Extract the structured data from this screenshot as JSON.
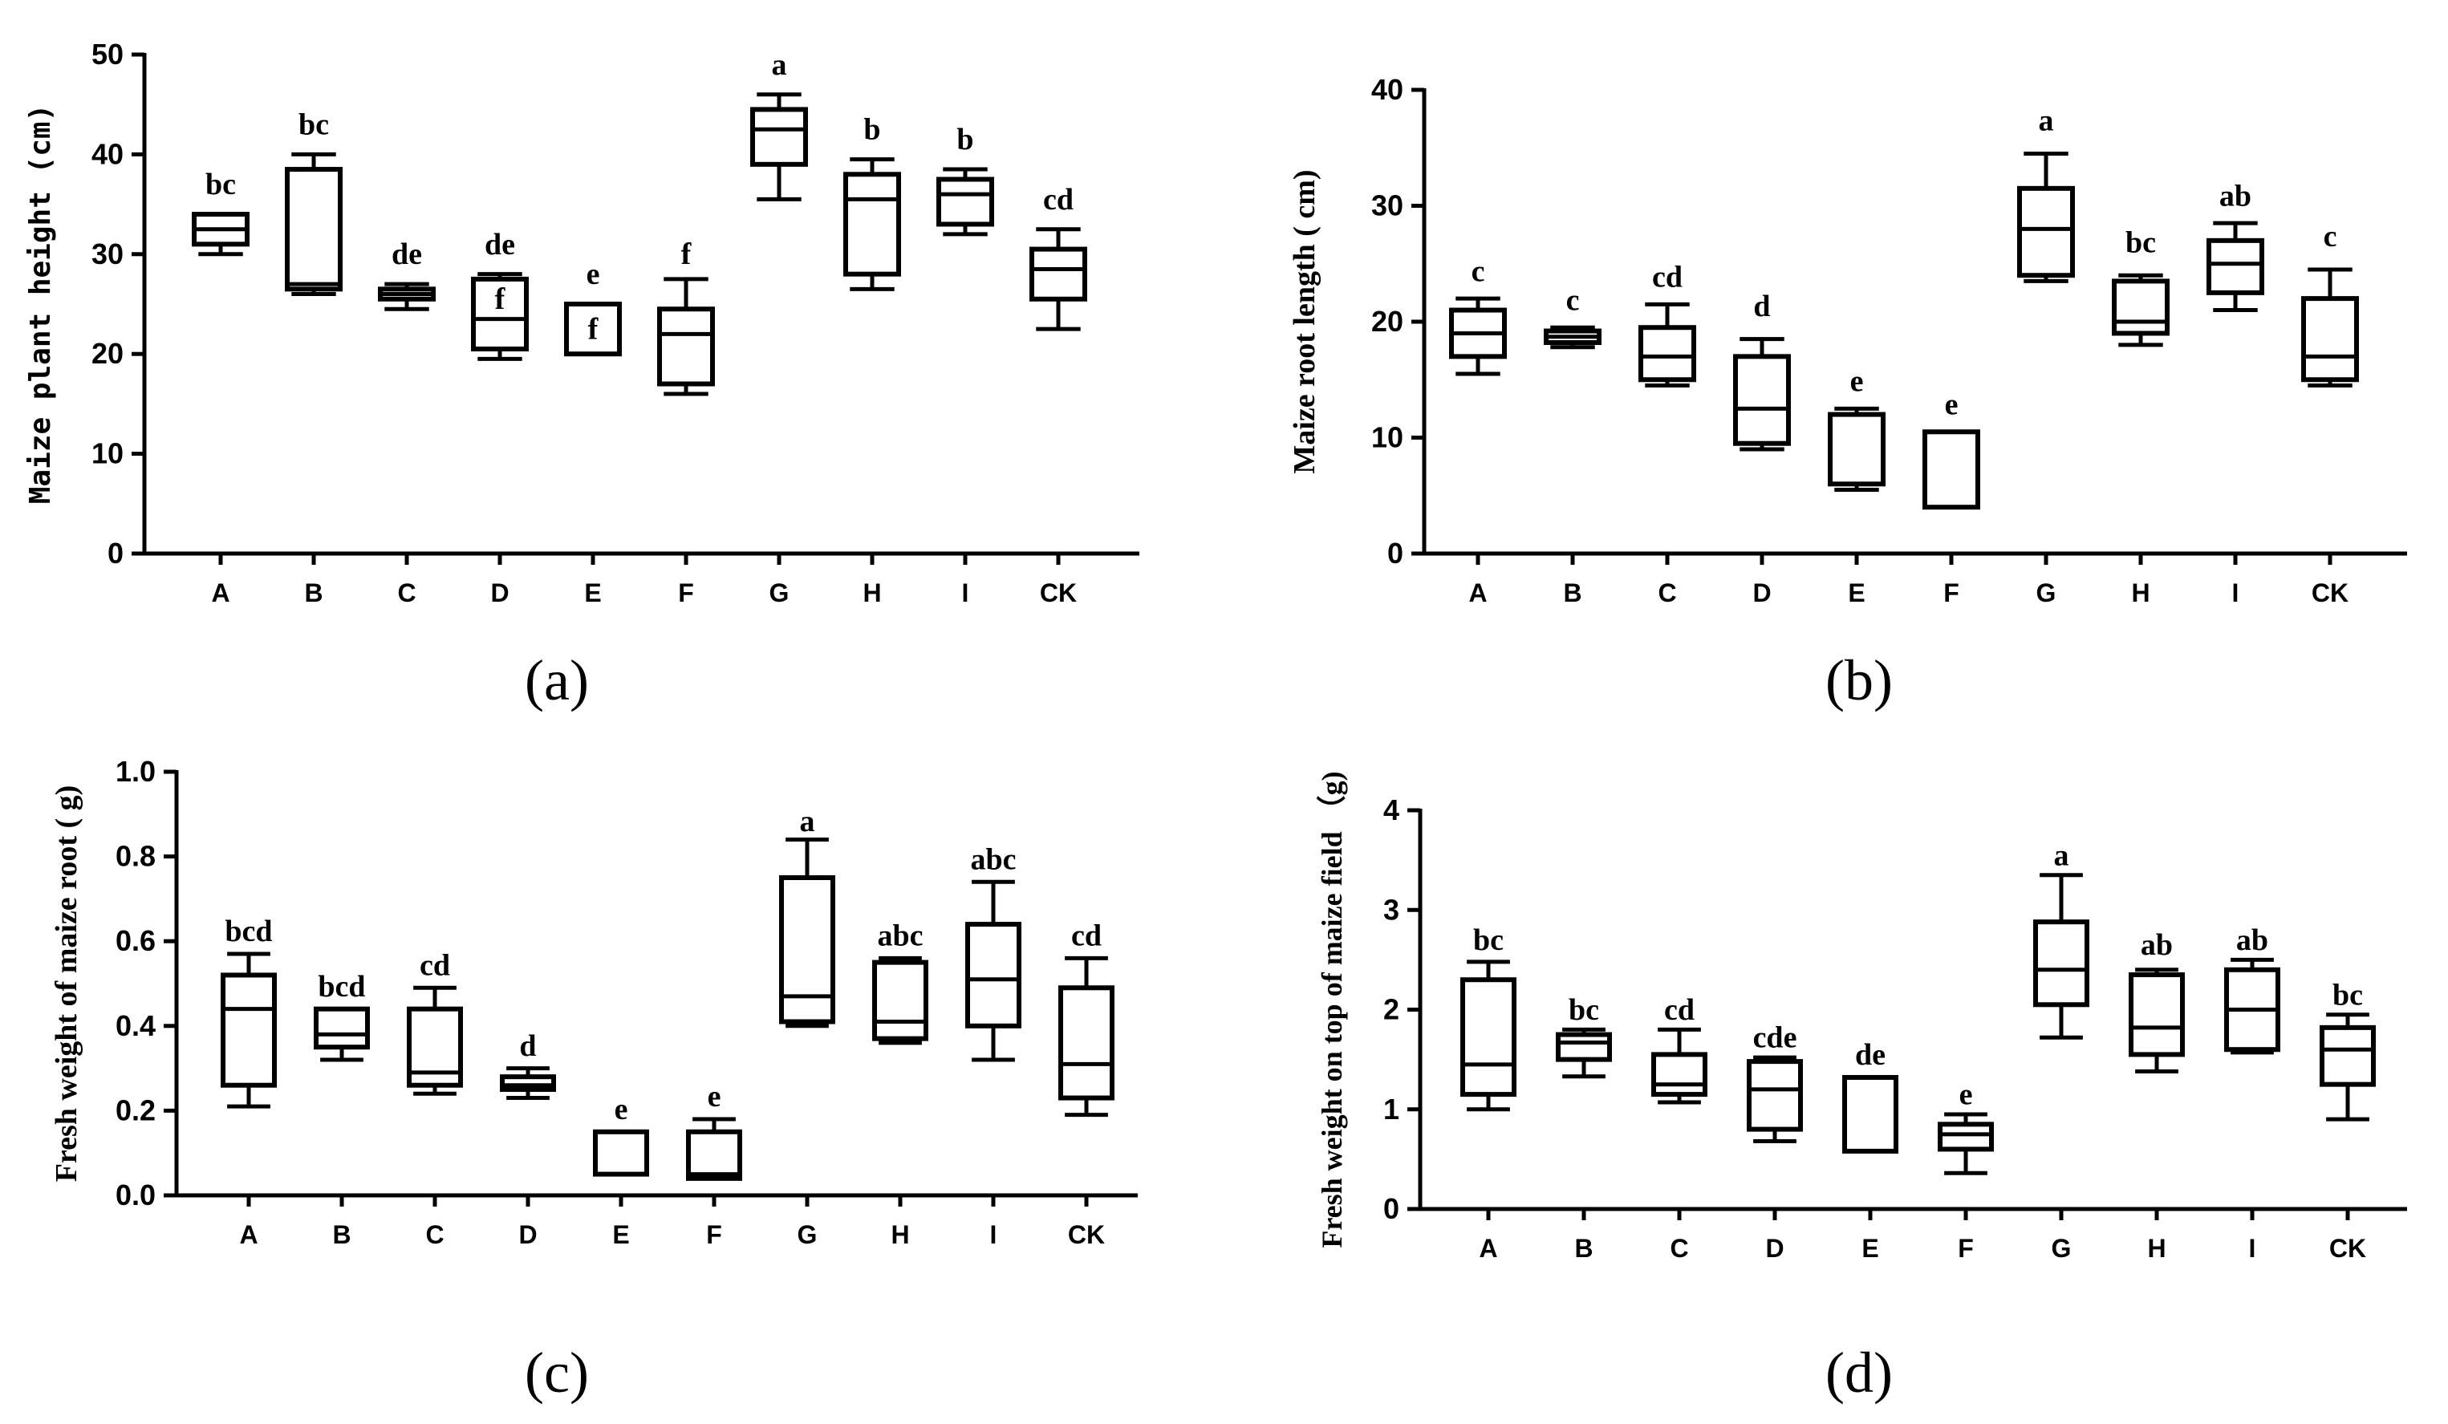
{
  "figure": {
    "panels": [
      "(a)",
      "(b)",
      "(c)",
      "(d)"
    ]
  },
  "chart_data": [
    {
      "id": "a",
      "type": "box",
      "panel_label": "(a)",
      "title": "",
      "xlabel": "",
      "ylabel": "Maize plant height (cm)",
      "ylim": [
        0,
        50
      ],
      "yticks": [
        0,
        10,
        20,
        30,
        40,
        50
      ],
      "categories": [
        "A",
        "B",
        "C",
        "D",
        "E",
        "F",
        "G",
        "H",
        "I",
        "CK"
      ],
      "boxes": [
        {
          "cat": "A",
          "min": 30.0,
          "q1": 31.0,
          "median": 32.5,
          "q3": 34.0,
          "max": 34.0
        },
        {
          "cat": "B",
          "min": 26.0,
          "q1": 26.5,
          "median": 27.0,
          "q3": 38.5,
          "max": 40.0
        },
        {
          "cat": "C",
          "min": 24.5,
          "q1": 25.5,
          "median": 26.0,
          "q3": 26.5,
          "max": 27.0
        },
        {
          "cat": "D",
          "min": 19.5,
          "q1": 20.5,
          "median": 23.5,
          "q3": 27.5,
          "max": 28.0
        },
        {
          "cat": "E",
          "min": 20.0,
          "q1": 20.0,
          "median": 20.0,
          "q3": 25.0,
          "max": 25.0
        },
        {
          "cat": "F",
          "min": 16.0,
          "q1": 17.0,
          "median": 22.0,
          "q3": 24.5,
          "max": 27.5
        },
        {
          "cat": "G",
          "min": 35.5,
          "q1": 39.0,
          "median": 42.5,
          "q3": 44.5,
          "max": 46.0
        },
        {
          "cat": "H",
          "min": 26.5,
          "q1": 28.0,
          "median": 35.5,
          "q3": 38.0,
          "max": 39.5
        },
        {
          "cat": "I",
          "min": 32.0,
          "q1": 33.0,
          "median": 36.0,
          "q3": 37.5,
          "max": 38.5
        },
        {
          "cat": "CK",
          "min": 22.5,
          "q1": 25.5,
          "median": 28.5,
          "q3": 30.5,
          "max": 32.5
        }
      ],
      "annotations": [
        {
          "cat": "A",
          "text": "bc",
          "y": 36.0
        },
        {
          "cat": "B",
          "text": "bc",
          "y": 42.0
        },
        {
          "cat": "C",
          "text": "de",
          "y": 29.0
        },
        {
          "cat": "D",
          "text": "de",
          "y": 30.0
        },
        {
          "cat": "D",
          "text": "f",
          "y": 24.5
        },
        {
          "cat": "E",
          "text": "e",
          "y": 27.0
        },
        {
          "cat": "E",
          "text": "f",
          "y": 21.5
        },
        {
          "cat": "F",
          "text": "f",
          "y": 29.0
        },
        {
          "cat": "G",
          "text": "a",
          "y": 48.0
        },
        {
          "cat": "H",
          "text": "b",
          "y": 41.5
        },
        {
          "cat": "I",
          "text": "b",
          "y": 40.5
        },
        {
          "cat": "CK",
          "text": "cd",
          "y": 34.5
        }
      ]
    },
    {
      "id": "b",
      "type": "box",
      "panel_label": "(b)",
      "title": "",
      "xlabel": "",
      "ylabel": "Maize root length ( cm)",
      "ylim": [
        0,
        40
      ],
      "yticks": [
        0,
        10,
        20,
        30,
        40
      ],
      "categories": [
        "A",
        "B",
        "C",
        "D",
        "E",
        "F",
        "G",
        "H",
        "I",
        "CK"
      ],
      "boxes": [
        {
          "cat": "A",
          "min": 15.5,
          "q1": 17.0,
          "median": 19.0,
          "q3": 21.0,
          "max": 22.0
        },
        {
          "cat": "B",
          "min": 17.8,
          "q1": 18.2,
          "median": 18.7,
          "q3": 19.2,
          "max": 19.5
        },
        {
          "cat": "C",
          "min": 14.5,
          "q1": 15.0,
          "median": 17.0,
          "q3": 19.5,
          "max": 21.5
        },
        {
          "cat": "D",
          "min": 9.0,
          "q1": 9.5,
          "median": 12.5,
          "q3": 17.0,
          "max": 18.5
        },
        {
          "cat": "E",
          "min": 5.5,
          "q1": 6.0,
          "median": 6.0,
          "q3": 12.0,
          "max": 12.5
        },
        {
          "cat": "F",
          "min": 4.0,
          "q1": 4.0,
          "median": 4.0,
          "q3": 10.5,
          "max": 10.5
        },
        {
          "cat": "G",
          "min": 23.5,
          "q1": 24.0,
          "median": 28.0,
          "q3": 31.5,
          "max": 34.5
        },
        {
          "cat": "H",
          "min": 18.0,
          "q1": 19.0,
          "median": 20.0,
          "q3": 23.5,
          "max": 24.0
        },
        {
          "cat": "I",
          "min": 21.0,
          "q1": 22.5,
          "median": 25.0,
          "q3": 27.0,
          "max": 28.5
        },
        {
          "cat": "CK",
          "min": 14.5,
          "q1": 15.0,
          "median": 17.0,
          "q3": 22.0,
          "max": 24.5
        }
      ],
      "annotations": [
        {
          "cat": "A",
          "text": "c",
          "y": 23.5
        },
        {
          "cat": "B",
          "text": "c",
          "y": 21.0
        },
        {
          "cat": "C",
          "text": "cd",
          "y": 23.0
        },
        {
          "cat": "D",
          "text": "d",
          "y": 20.5
        },
        {
          "cat": "E",
          "text": "e",
          "y": 14.0
        },
        {
          "cat": "F",
          "text": "e",
          "y": 12.0
        },
        {
          "cat": "G",
          "text": "a",
          "y": 36.5
        },
        {
          "cat": "H",
          "text": "bc",
          "y": 26.0
        },
        {
          "cat": "I",
          "text": "ab",
          "y": 30.0
        },
        {
          "cat": "CK",
          "text": "c",
          "y": 26.5
        }
      ]
    },
    {
      "id": "c",
      "type": "box",
      "panel_label": "(c)",
      "title": "",
      "xlabel": "",
      "ylabel": "Fresh weight of maize root ( g)",
      "ylim": [
        0,
        1.0
      ],
      "yticks": [
        0.0,
        0.2,
        0.4,
        0.6,
        0.8,
        1.0
      ],
      "ytick_labels": [
        "0.0",
        "0.2",
        "0.4",
        "0.6",
        "0.8",
        "1.0"
      ],
      "categories": [
        "A",
        "B",
        "C",
        "D",
        "E",
        "F",
        "G",
        "H",
        "I",
        "CK"
      ],
      "boxes": [
        {
          "cat": "A",
          "min": 0.21,
          "q1": 0.26,
          "median": 0.44,
          "q3": 0.52,
          "max": 0.57
        },
        {
          "cat": "B",
          "min": 0.32,
          "q1": 0.35,
          "median": 0.38,
          "q3": 0.44,
          "max": 0.44
        },
        {
          "cat": "C",
          "min": 0.24,
          "q1": 0.26,
          "median": 0.29,
          "q3": 0.44,
          "max": 0.49
        },
        {
          "cat": "D",
          "min": 0.23,
          "q1": 0.25,
          "median": 0.26,
          "q3": 0.28,
          "max": 0.3
        },
        {
          "cat": "E",
          "min": 0.05,
          "q1": 0.05,
          "median": 0.05,
          "q3": 0.15,
          "max": 0.15
        },
        {
          "cat": "F",
          "min": 0.04,
          "q1": 0.04,
          "median": 0.05,
          "q3": 0.15,
          "max": 0.18
        },
        {
          "cat": "G",
          "min": 0.4,
          "q1": 0.41,
          "median": 0.47,
          "q3": 0.75,
          "max": 0.84
        },
        {
          "cat": "H",
          "min": 0.36,
          "q1": 0.37,
          "median": 0.41,
          "q3": 0.55,
          "max": 0.56
        },
        {
          "cat": "I",
          "min": 0.32,
          "q1": 0.4,
          "median": 0.51,
          "q3": 0.64,
          "max": 0.74
        },
        {
          "cat": "CK",
          "min": 0.19,
          "q1": 0.23,
          "median": 0.31,
          "q3": 0.49,
          "max": 0.56
        }
      ],
      "annotations": [
        {
          "cat": "A",
          "text": "bcd",
          "y": 0.6
        },
        {
          "cat": "B",
          "text": "bcd",
          "y": 0.47
        },
        {
          "cat": "C",
          "text": "cd",
          "y": 0.52
        },
        {
          "cat": "D",
          "text": "d",
          "y": 0.33
        },
        {
          "cat": "E",
          "text": "e",
          "y": 0.18
        },
        {
          "cat": "F",
          "text": "e",
          "y": 0.21
        },
        {
          "cat": "G",
          "text": "a",
          "y": 0.86
        },
        {
          "cat": "H",
          "text": "abc",
          "y": 0.59
        },
        {
          "cat": "I",
          "text": "abc",
          "y": 0.77
        },
        {
          "cat": "CK",
          "text": "cd",
          "y": 0.59
        }
      ]
    },
    {
      "id": "d",
      "type": "box",
      "panel_label": "(d)",
      "title": "",
      "xlabel": "",
      "ylabel": "Fresh weight on top of maize field （g)",
      "ylim": [
        0,
        4
      ],
      "yticks": [
        0,
        1,
        2,
        3,
        4
      ],
      "categories": [
        "A",
        "B",
        "C",
        "D",
        "E",
        "F",
        "G",
        "H",
        "I",
        "CK"
      ],
      "boxes": [
        {
          "cat": "A",
          "min": 1.0,
          "q1": 1.15,
          "median": 1.45,
          "q3": 2.3,
          "max": 2.48
        },
        {
          "cat": "B",
          "min": 1.33,
          "q1": 1.5,
          "median": 1.67,
          "q3": 1.75,
          "max": 1.8
        },
        {
          "cat": "C",
          "min": 1.07,
          "q1": 1.15,
          "median": 1.25,
          "q3": 1.55,
          "max": 1.8
        },
        {
          "cat": "D",
          "min": 0.68,
          "q1": 0.8,
          "median": 1.2,
          "q3": 1.48,
          "max": 1.52
        },
        {
          "cat": "E",
          "min": 0.58,
          "q1": 0.58,
          "median": 0.58,
          "q3": 1.32,
          "max": 1.32
        },
        {
          "cat": "F",
          "min": 0.36,
          "q1": 0.6,
          "median": 0.75,
          "q3": 0.85,
          "max": 0.95
        },
        {
          "cat": "G",
          "min": 1.72,
          "q1": 2.05,
          "median": 2.4,
          "q3": 2.88,
          "max": 3.35
        },
        {
          "cat": "H",
          "min": 1.38,
          "q1": 1.55,
          "median": 1.82,
          "q3": 2.35,
          "max": 2.4
        },
        {
          "cat": "I",
          "min": 1.57,
          "q1": 1.6,
          "median": 2.0,
          "q3": 2.4,
          "max": 2.5
        },
        {
          "cat": "CK",
          "min": 0.9,
          "q1": 1.25,
          "median": 1.6,
          "q3": 1.82,
          "max": 1.95
        }
      ],
      "annotations": [
        {
          "cat": "A",
          "text": "bc",
          "y": 2.6
        },
        {
          "cat": "B",
          "text": "bc",
          "y": 1.9
        },
        {
          "cat": "C",
          "text": "cd",
          "y": 1.9
        },
        {
          "cat": "D",
          "text": "cde",
          "y": 1.62
        },
        {
          "cat": "E",
          "text": "de",
          "y": 1.45
        },
        {
          "cat": "F",
          "text": "e",
          "y": 1.05
        },
        {
          "cat": "G",
          "text": "a",
          "y": 3.45
        },
        {
          "cat": "H",
          "text": "ab",
          "y": 2.55
        },
        {
          "cat": "I",
          "text": "ab",
          "y": 2.6
        },
        {
          "cat": "CK",
          "text": "bc",
          "y": 2.05
        }
      ]
    }
  ]
}
